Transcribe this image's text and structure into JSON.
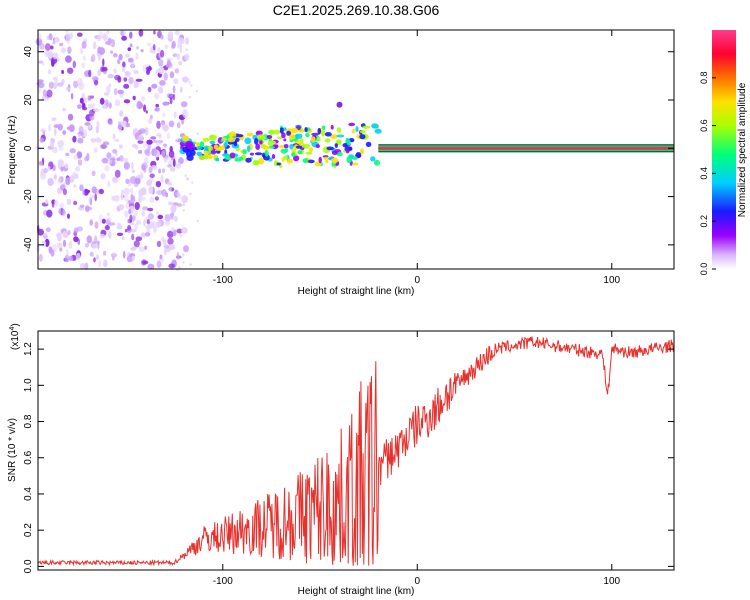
{
  "title": "C2E1.2025.269.10.38.G06",
  "colors": {
    "snr_line": "#e8302c",
    "axis": "#000000",
    "track_core": "#e8305a"
  },
  "chart_data": [
    {
      "type": "heatmap",
      "name": "spectrogram",
      "xlabel": "Height of straight line (km)",
      "ylabel": "Frequency (Hz)",
      "xlim": [
        -195,
        132
      ],
      "ylim": [
        -50,
        49
      ],
      "x_ticks": [
        "-100",
        "0",
        "100"
      ],
      "y_ticks": [
        "-40",
        "-20",
        "0",
        "20",
        "40"
      ],
      "colorbar": {
        "label": "Normalized spectral amplitude",
        "range": [
          0,
          1
        ],
        "ticks": [
          "0.0",
          "0.2",
          "0.4",
          "0.6",
          "0.8"
        ],
        "colormap": [
          "#ffffff",
          "#d9b3ff",
          "#9a00ff",
          "#1a1aff",
          "#00cfff",
          "#00ff7a",
          "#aaff00",
          "#ffe000",
          "#ff7000",
          "#ff0030",
          "#ff3c8c"
        ]
      },
      "track": {
        "noise_region_x": [
          -195,
          -122
        ],
        "narrowband_start_x": -20,
        "end_x": 132,
        "center_freq_hz": 0,
        "features": [
          {
            "x": -40,
            "freq_hz": 18
          },
          {
            "x": -95,
            "freq_hz": -3
          }
        ]
      }
    },
    {
      "type": "line",
      "name": "snr",
      "xlabel": "Height of straight line (km)",
      "ylabel": "SNR (10 * v/v)",
      "y_scale_label_base": "(x10",
      "y_scale_label_exp": "4",
      "y_scale_label_end": ")",
      "xlim": [
        -195,
        132
      ],
      "ylim": [
        -0.02,
        1.3
      ],
      "x_ticks": [
        "-100",
        "0",
        "100"
      ],
      "y_ticks": [
        "0.0",
        "0.2",
        "0.4",
        "0.6",
        "0.8",
        "1.0",
        "1.2"
      ],
      "series": [
        {
          "name": "SNR",
          "x": [
            -195,
            -160,
            -125,
            -118,
            -110,
            -100,
            -90,
            -80,
            -70,
            -60,
            -50,
            -40,
            -30,
            -20,
            -15,
            -10,
            -5,
            0,
            5,
            10,
            15,
            20,
            25,
            30,
            35,
            40,
            50,
            60,
            70,
            80,
            90,
            95,
            98,
            100,
            102,
            105,
            110,
            120,
            132
          ],
          "values": [
            0.02,
            0.02,
            0.02,
            0.08,
            0.15,
            0.17,
            0.2,
            0.22,
            0.25,
            0.28,
            0.32,
            0.35,
            0.45,
            0.55,
            0.6,
            0.65,
            0.72,
            0.78,
            0.82,
            0.87,
            0.95,
            1.0,
            1.05,
            1.1,
            1.15,
            1.2,
            1.22,
            1.24,
            1.22,
            1.2,
            1.18,
            1.18,
            0.95,
            1.2,
            1.2,
            1.19,
            1.18,
            1.2,
            1.22
          ]
        }
      ]
    }
  ]
}
